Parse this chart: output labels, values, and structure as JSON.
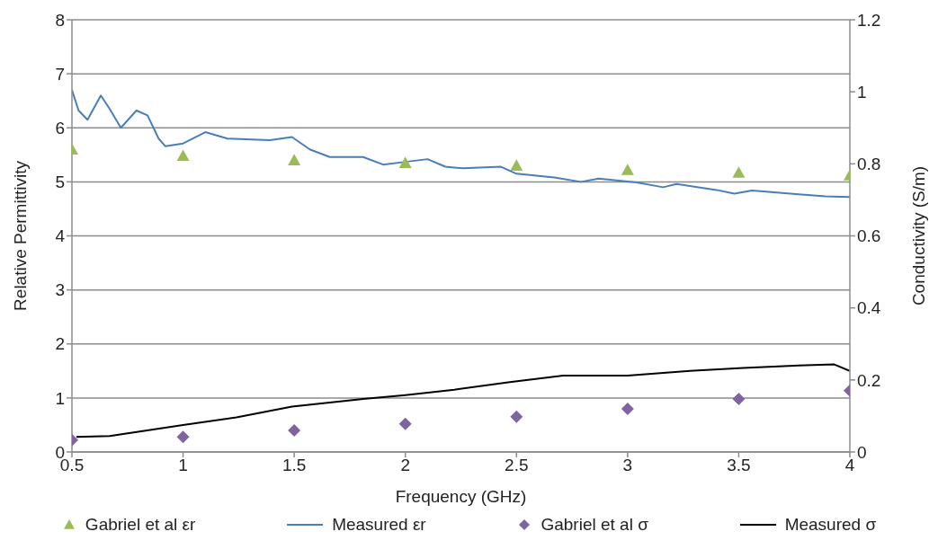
{
  "chart_data": {
    "type": "line",
    "xlabel": "Frequency (GHz)",
    "ylabel": "Relative Permittivity",
    "y2label": "Conductivity (S/m)",
    "xlim": [
      0.5,
      4
    ],
    "xticks": [
      0.5,
      1,
      1.5,
      2,
      2.5,
      3,
      3.5,
      4
    ],
    "ylim": [
      0,
      8
    ],
    "yticks": [
      0,
      1,
      2,
      3,
      4,
      5,
      6,
      7,
      8
    ],
    "y2lim": [
      0,
      1.2
    ],
    "y2ticks": [
      0,
      0.2,
      0.4,
      0.6,
      0.8,
      1,
      1.2
    ],
    "grid": "y",
    "legend": "bottom",
    "series": [
      {
        "name": "Gabriel et al εr",
        "type": "scatter",
        "marker": "triangle",
        "color": "#9bbb59",
        "x": [
          0.5,
          1,
          1.5,
          2,
          2.5,
          3,
          3.5,
          4
        ],
        "values": [
          5.6,
          5.48,
          5.4,
          5.35,
          5.3,
          5.22,
          5.17,
          5.12
        ]
      },
      {
        "name": "Measured εr",
        "marker": "none",
        "color": "#4a7ebb",
        "x": [
          0.5,
          0.53,
          0.57,
          0.63,
          0.67,
          0.72,
          0.79,
          0.84,
          0.89,
          0.92,
          1.0,
          1.1,
          1.2,
          1.39,
          1.49,
          1.57,
          1.66,
          1.81,
          1.9,
          2.0,
          2.1,
          2.18,
          2.26,
          2.43,
          2.5,
          2.67,
          2.79,
          2.87,
          3.04,
          3.16,
          3.22,
          3.4,
          3.48,
          3.56,
          3.77,
          3.89,
          4.0
        ],
        "values": [
          6.7,
          6.32,
          6.15,
          6.6,
          6.35,
          6.0,
          6.32,
          6.23,
          5.8,
          5.66,
          5.71,
          5.92,
          5.8,
          5.77,
          5.83,
          5.6,
          5.46,
          5.46,
          5.32,
          5.37,
          5.42,
          5.28,
          5.25,
          5.28,
          5.15,
          5.08,
          5.0,
          5.06,
          4.99,
          4.9,
          4.96,
          4.85,
          4.78,
          4.84,
          4.77,
          4.73,
          4.72
        ]
      },
      {
        "name": "Gabriel et al σ",
        "type": "scatter",
        "marker": "diamond",
        "axis": "y2",
        "color": "#8064a2",
        "x": [
          0.5,
          1,
          1.5,
          2,
          2.5,
          3,
          3.5,
          4
        ],
        "values": [
          0.033,
          0.042,
          0.06,
          0.078,
          0.098,
          0.12,
          0.147,
          0.17
        ]
      },
      {
        "name": "Measured σ",
        "marker": "none",
        "axis": "y2",
        "color": "#000000",
        "x": [
          0.52,
          0.67,
          1.0,
          1.24,
          1.49,
          1.81,
          2.0,
          2.22,
          2.47,
          2.71,
          3.0,
          3.28,
          3.52,
          3.77,
          3.93,
          4.0
        ],
        "values": [
          0.042,
          0.044,
          0.075,
          0.096,
          0.126,
          0.147,
          0.158,
          0.173,
          0.194,
          0.212,
          0.212,
          0.225,
          0.233,
          0.24,
          0.243,
          0.225
        ]
      }
    ]
  }
}
